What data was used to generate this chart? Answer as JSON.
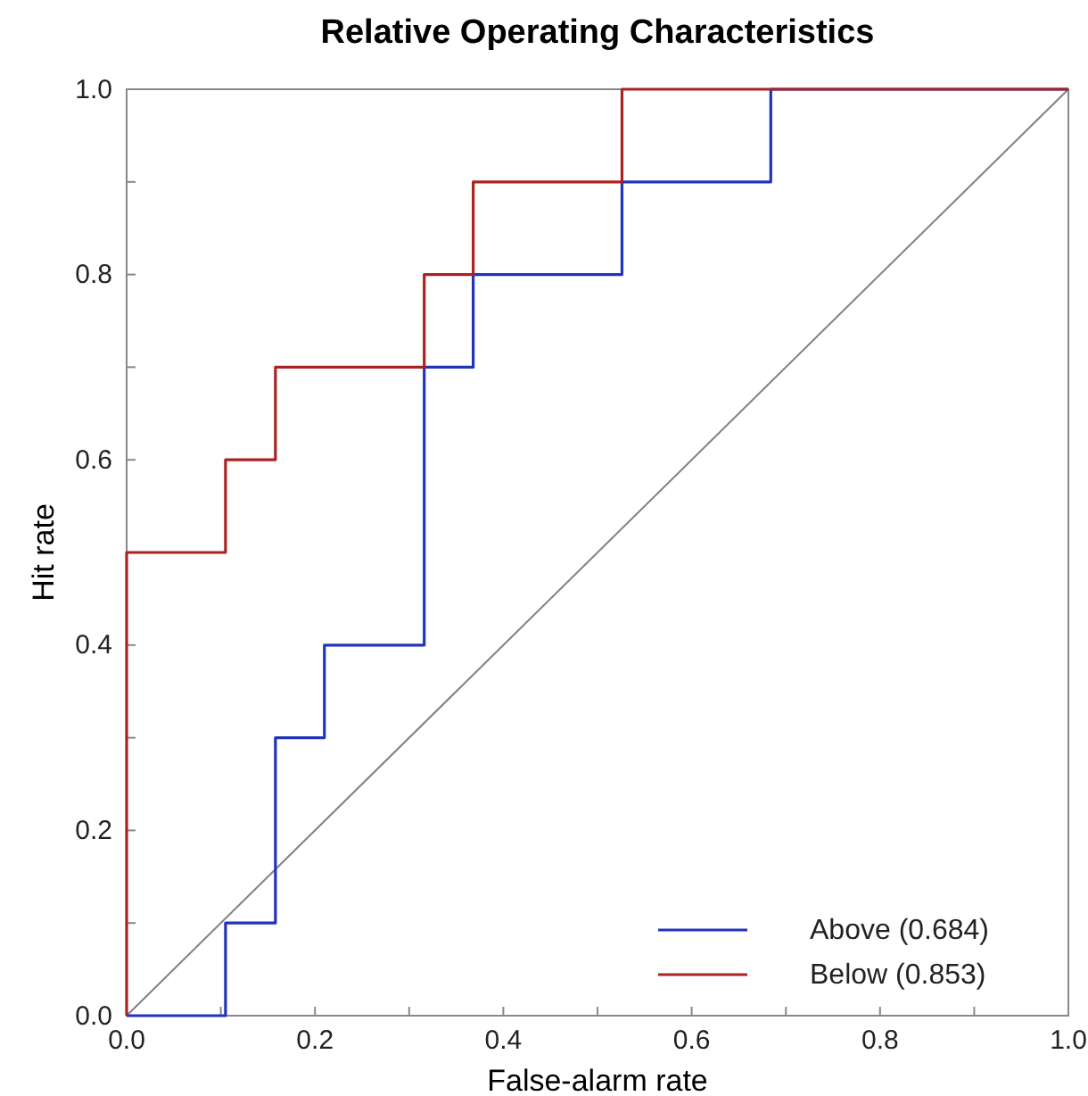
{
  "chart_data": {
    "type": "step",
    "title": "Relative Operating Characteristics",
    "xlabel": "False-alarm rate",
    "ylabel": "Hit rate",
    "xlim": [
      0,
      1
    ],
    "ylim": [
      0,
      1
    ],
    "xticks": [
      {
        "value": 0,
        "label": "0.0"
      },
      {
        "value": 0.1,
        "label": null
      },
      {
        "value": 0.2,
        "label": "0.2"
      },
      {
        "value": 0.3,
        "label": null
      },
      {
        "value": 0.4,
        "label": "0.4"
      },
      {
        "value": 0.5,
        "label": null
      },
      {
        "value": 0.6,
        "label": "0.6"
      },
      {
        "value": 0.7,
        "label": null
      },
      {
        "value": 0.8,
        "label": "0.8"
      },
      {
        "value": 0.9,
        "label": null
      },
      {
        "value": 1,
        "label": "1.0"
      }
    ],
    "yticks": [
      {
        "value": 0,
        "label": "0.0"
      },
      {
        "value": 0.1,
        "label": null
      },
      {
        "value": 0.2,
        "label": "0.2"
      },
      {
        "value": 0.3,
        "label": null
      },
      {
        "value": 0.4,
        "label": "0.4"
      },
      {
        "value": 0.5,
        "label": null
      },
      {
        "value": 0.6,
        "label": "0.6"
      },
      {
        "value": 0.7,
        "label": null
      },
      {
        "value": 0.8,
        "label": "0.8"
      },
      {
        "value": 0.9,
        "label": null
      },
      {
        "value": 1,
        "label": "1.0"
      }
    ],
    "legend": "bottom right",
    "grid": false,
    "series": [
      {
        "type": "line",
        "color": "#808080",
        "x": [
          0,
          1
        ],
        "values": [
          0,
          1
        ]
      },
      {
        "name": "Above (0.684)",
        "color": "#2233bb",
        "x": [
          0,
          0.105,
          0.158,
          0.21,
          0.316,
          0.368,
          0.526,
          0.684,
          1
        ],
        "values": [
          0,
          0.1,
          0.3,
          0.4,
          0.7,
          0.8,
          0.9,
          1,
          1
        ]
      },
      {
        "name": "Below (0.853)",
        "color": "#aa2222",
        "x": [
          0,
          0,
          0.105,
          0.158,
          0.316,
          0.368,
          0.526,
          1
        ],
        "values": [
          0,
          0.5,
          0.6,
          0.7,
          0.8,
          0.9,
          1,
          1
        ]
      }
    ]
  }
}
